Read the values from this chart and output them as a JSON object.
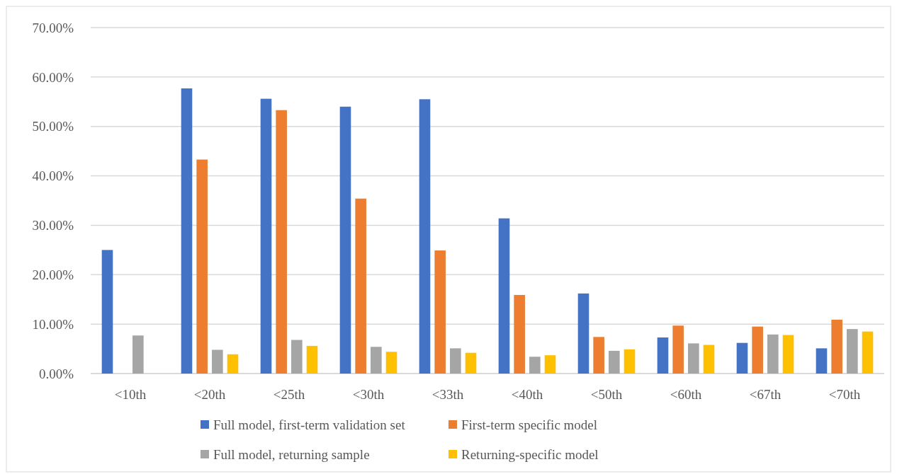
{
  "chart_data": {
    "type": "bar",
    "categories": [
      "<10th",
      "<20th",
      "<25th",
      "<30th",
      "<33th",
      "<40th",
      "<50th",
      "<60th",
      "<67th",
      "<70th"
    ],
    "series": [
      {
        "name": "Full model, first-term validation set",
        "color": "#4472c4",
        "values": [
          25.0,
          57.7,
          55.6,
          54.0,
          55.5,
          31.4,
          16.2,
          7.3,
          6.2,
          5.1
        ]
      },
      {
        "name": "First-term specific model",
        "color": "#ed7d31",
        "values": [
          null,
          43.3,
          53.3,
          35.4,
          24.9,
          15.9,
          7.4,
          9.7,
          9.5,
          10.9
        ]
      },
      {
        "name": "Full model, returning sample",
        "color": "#a5a5a5",
        "values": [
          7.7,
          4.8,
          6.8,
          5.4,
          5.1,
          3.4,
          4.6,
          6.1,
          7.9,
          9.0
        ]
      },
      {
        "name": "Returning-specific model",
        "color": "#ffc000",
        "values": [
          null,
          3.9,
          5.6,
          4.4,
          4.2,
          3.7,
          4.9,
          5.8,
          7.8,
          8.5
        ]
      }
    ],
    "ylim": [
      0,
      70
    ],
    "yticks": [
      {
        "value": 0,
        "label": "0.00%"
      },
      {
        "value": 10,
        "label": "10.00%"
      },
      {
        "value": 20,
        "label": "20.00%"
      },
      {
        "value": 30,
        "label": "30.00%"
      },
      {
        "value": 40,
        "label": "40.00%"
      },
      {
        "value": 50,
        "label": "50.00%"
      },
      {
        "value": 60,
        "label": "60.00%"
      },
      {
        "value": 70,
        "label": "70.00%"
      }
    ],
    "grid": "y",
    "legend": "bottom"
  }
}
